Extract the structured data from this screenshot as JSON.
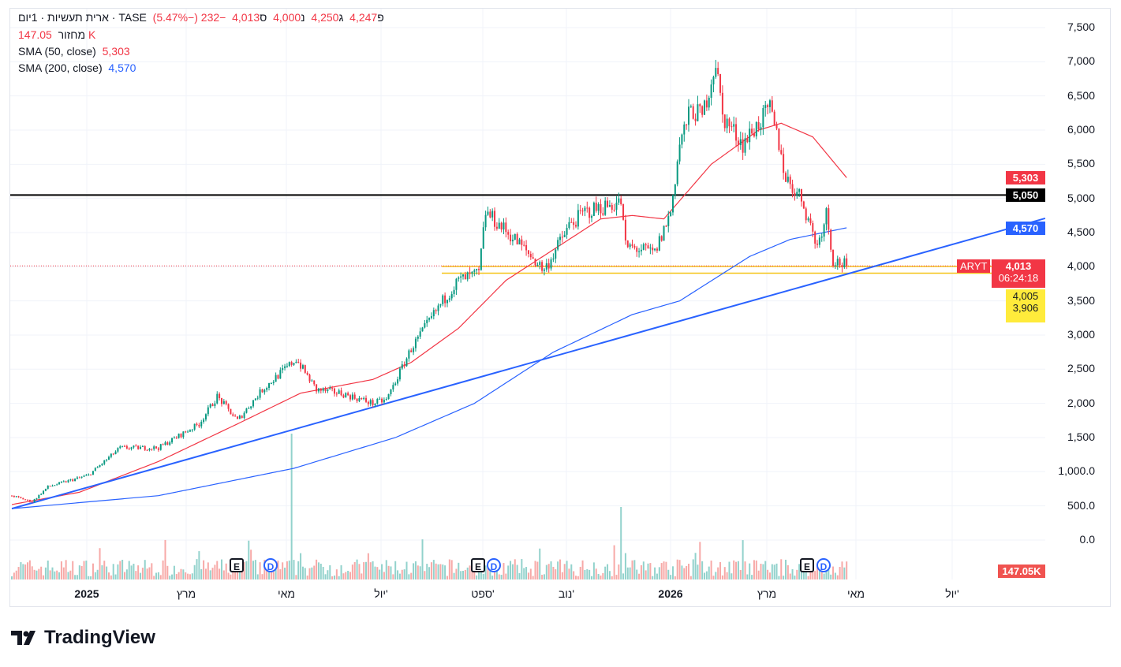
{
  "legend": {
    "title": "ארית תעשיות · 1יום · TASE",
    "open_label": "פ",
    "open": "4,247",
    "high_label": "ג",
    "high": "4,250",
    "low_label": "נ",
    "low": "4,000",
    "close_label": "ס",
    "close": "4,013",
    "change": "−232 (−5.47%)",
    "volume_label": "מחזור",
    "volume": "147.05 K",
    "sma50_label": "SMA (50, close)",
    "sma50": "5,303",
    "sma200_label": "SMA (200, close)",
    "sma200": "4,570"
  },
  "price_axis": [
    "7,500",
    "7,000",
    "6,500",
    "6,000",
    "5,500",
    "5,000",
    "4,500",
    "4,000",
    "3,500",
    "3,000",
    "2,500",
    "2,000",
    "1,500",
    "1,000.0",
    "500.0",
    "0.0"
  ],
  "tags": {
    "sma50": "5,303",
    "hline": "5,050",
    "sma200": "4,570",
    "symbol": "ARYT",
    "last": "4,013",
    "countdown": "06:24:18",
    "y1": "4,005",
    "y2": "3,906",
    "volume": "147.05K"
  },
  "time_axis": [
    "2025",
    "מרץ",
    "מאי",
    "יול'",
    "ספט'",
    "נוב'",
    "2026",
    "מרץ",
    "מאי",
    "יול'"
  ],
  "events": [
    "E",
    "D",
    "E",
    "D",
    "E",
    "D"
  ],
  "brand": "TradingView",
  "colors": {
    "up": "#089981",
    "down": "#f23645",
    "sma50": "#f23645",
    "sma200": "#2962ff",
    "trend": "#2962ff",
    "hline": "#000000",
    "zone": "#f5c518"
  },
  "chart_data": {
    "type": "candlestick",
    "days": 371,
    "close_path": [
      [
        0,
        650
      ],
      [
        9,
        560
      ],
      [
        16,
        780
      ],
      [
        34,
        950
      ],
      [
        48,
        1350
      ],
      [
        65,
        1350
      ],
      [
        83,
        1700
      ],
      [
        91,
        2100
      ],
      [
        100,
        1750
      ],
      [
        111,
        2200
      ],
      [
        126,
        2650
      ],
      [
        135,
        2200
      ],
      [
        146,
        2150
      ],
      [
        160,
        2000
      ],
      [
        166,
        2050
      ],
      [
        177,
        2800
      ],
      [
        191,
        3500
      ],
      [
        198,
        3800
      ],
      [
        207,
        3900
      ],
      [
        210,
        4800
      ],
      [
        223,
        4400
      ],
      [
        236,
        3950
      ],
      [
        247,
        4600
      ],
      [
        254,
        4800
      ],
      [
        270,
        4950
      ],
      [
        272,
        4300
      ],
      [
        285,
        4200
      ],
      [
        292,
        4800
      ],
      [
        296,
        5800
      ],
      [
        301,
        6300
      ],
      [
        306,
        6200
      ],
      [
        312,
        7000
      ],
      [
        315,
        6200
      ],
      [
        324,
        5800
      ],
      [
        331,
        6100
      ],
      [
        336,
        6300
      ],
      [
        340,
        5800
      ],
      [
        343,
        5300
      ],
      [
        350,
        5000
      ],
      [
        357,
        4300
      ],
      [
        361,
        4800
      ],
      [
        364,
        4100
      ],
      [
        370,
        4013
      ]
    ],
    "sma50_path": [
      [
        0,
        520
      ],
      [
        30,
        700
      ],
      [
        65,
        1150
      ],
      [
        100,
        1700
      ],
      [
        128,
        2150
      ],
      [
        160,
        2350
      ],
      [
        177,
        2600
      ],
      [
        198,
        3100
      ],
      [
        219,
        3800
      ],
      [
        240,
        4250
      ],
      [
        261,
        4700
      ],
      [
        275,
        4750
      ],
      [
        289,
        4700
      ],
      [
        310,
        5500
      ],
      [
        331,
        6000
      ],
      [
        341,
        6100
      ],
      [
        355,
        5900
      ],
      [
        370,
        5303
      ]
    ],
    "sma200_path": [
      [
        0,
        460
      ],
      [
        65,
        650
      ],
      [
        125,
        1050
      ],
      [
        170,
        1500
      ],
      [
        205,
        2000
      ],
      [
        240,
        2750
      ],
      [
        275,
        3300
      ],
      [
        296,
        3500
      ],
      [
        327,
        4150
      ],
      [
        345,
        4400
      ],
      [
        370,
        4570
      ]
    ],
    "trendline": [
      [
        0,
        460
      ],
      [
        458,
        4708
      ]
    ],
    "hline": 5050,
    "zone": [
      4005,
      3906
    ],
    "last": 4013,
    "ylim": [
      0,
      7500
    ]
  }
}
